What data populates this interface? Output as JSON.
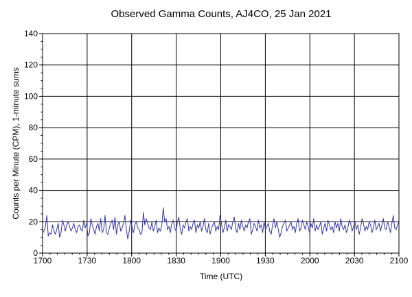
{
  "chart_data": {
    "type": "line",
    "title": "Observed Gamma Counts, AJ4CO, 25 Jan 2021",
    "xlabel": "Time (UTC)",
    "ylabel": "Counts per Minute (CPM), 1-minute sums",
    "x_ticks": [
      "1700",
      "1730",
      "1800",
      "1830",
      "1900",
      "1930",
      "2000",
      "2030",
      "2100"
    ],
    "xlim_minutes": [
      0,
      240
    ],
    "ylim": [
      0,
      140
    ],
    "y_ticks": [
      0,
      20,
      40,
      60,
      80,
      100,
      120,
      140
    ],
    "grid": true,
    "legend": "none",
    "series": [
      {
        "color": "#3333aa",
        "values": [
          13,
          14,
          17,
          24,
          11,
          13,
          12,
          18,
          14,
          12,
          15,
          19,
          10,
          13,
          21,
          18,
          14,
          18,
          20,
          17,
          14,
          16,
          19,
          15,
          13,
          17,
          18,
          15,
          14,
          21,
          16,
          19,
          11,
          13,
          22,
          18,
          15,
          12,
          17,
          19,
          14,
          22,
          13,
          15,
          24,
          13,
          12,
          16,
          19,
          21,
          15,
          23,
          12,
          18,
          20,
          14,
          16,
          19,
          24,
          15,
          9,
          14,
          21,
          17,
          13,
          18,
          20,
          16,
          15,
          12,
          13,
          26,
          18,
          22,
          19,
          16,
          15,
          20,
          14,
          17,
          21,
          13,
          16,
          14,
          18,
          29,
          20,
          22,
          15,
          17,
          13,
          19,
          21,
          16,
          14,
          20,
          23,
          15,
          12,
          18,
          16,
          20,
          22,
          14,
          17,
          15,
          19,
          21,
          13,
          18,
          16,
          20,
          14,
          17,
          22,
          15,
          13,
          19,
          12,
          16,
          18,
          20,
          14,
          17,
          15,
          24,
          19,
          13,
          16,
          21,
          14,
          18,
          17,
          15,
          20,
          23,
          16,
          13,
          19,
          15,
          21,
          17,
          14,
          18,
          16,
          20,
          22,
          12,
          15,
          19,
          17,
          14,
          21,
          16,
          18,
          13,
          20,
          15,
          17,
          19,
          14,
          12,
          18,
          22,
          16,
          20,
          15,
          10,
          13,
          17,
          19,
          21,
          14,
          16,
          18,
          20,
          15,
          17,
          13,
          19,
          22,
          14,
          16,
          21,
          18,
          15,
          20,
          17,
          13,
          19,
          16,
          22,
          14,
          18,
          15,
          17,
          20,
          12,
          16,
          19,
          14,
          21,
          18,
          15,
          17,
          13,
          20,
          16,
          19,
          14,
          22,
          17,
          15,
          18,
          13,
          16,
          21,
          19,
          14,
          17,
          20,
          15,
          18,
          12,
          16,
          22,
          19,
          14,
          17,
          15,
          20,
          18,
          13,
          16,
          21,
          15,
          17,
          19,
          14,
          18,
          22,
          16,
          15,
          20,
          17,
          13,
          19,
          24,
          16,
          15,
          18,
          20
        ]
      }
    ]
  }
}
